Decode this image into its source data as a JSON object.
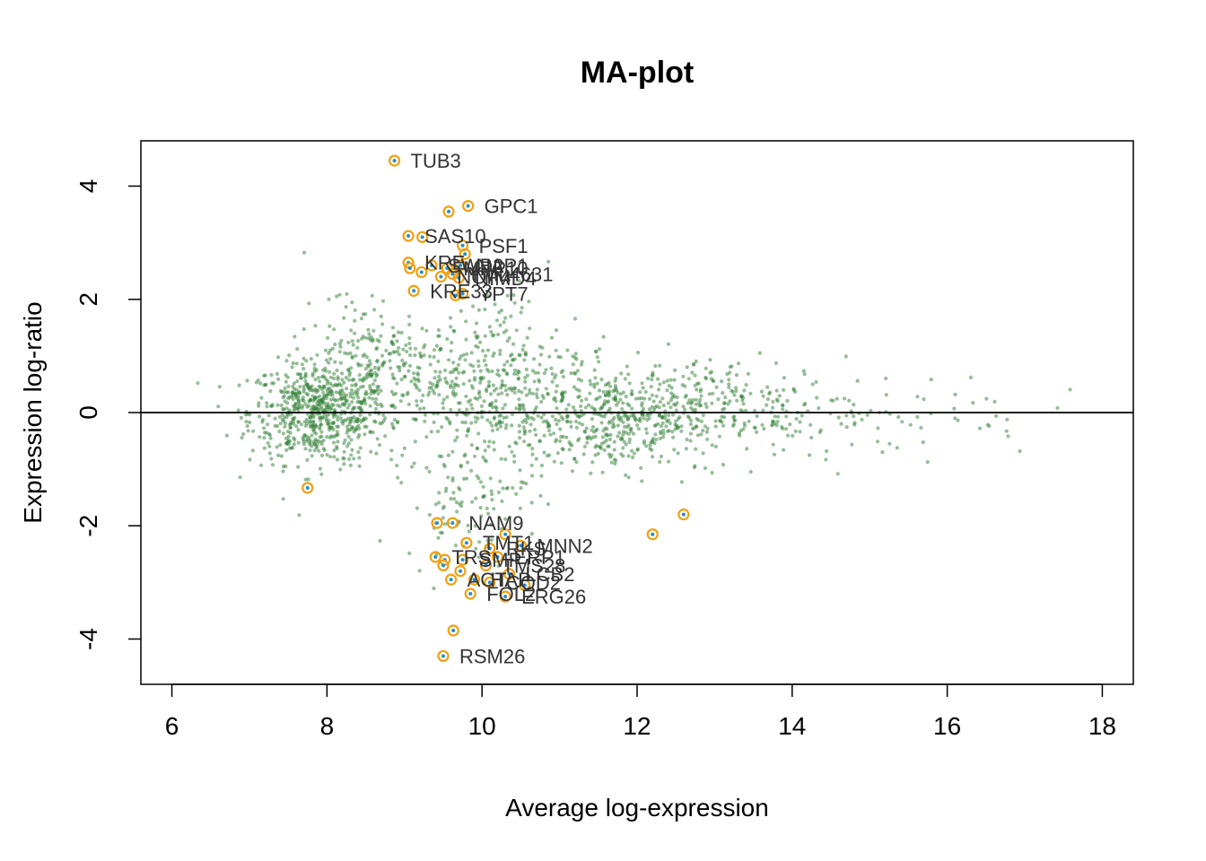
{
  "chart_data": {
    "type": "scatter",
    "title": "MA-plot",
    "xlabel": "Average log-expression",
    "ylabel": "Expression log-ratio",
    "xlim": [
      5.6,
      18.4
    ],
    "ylim": [
      -4.8,
      4.8
    ],
    "xticks": [
      6,
      8,
      10,
      12,
      14,
      16,
      18
    ],
    "yticks": [
      -4,
      -2,
      0,
      2,
      4
    ],
    "xtick_labels": [
      "6",
      "8",
      "10",
      "12",
      "14",
      "16",
      "18"
    ],
    "ytick_labels": [
      "-4",
      "-2",
      "0",
      "2",
      "4"
    ],
    "hline": 0,
    "grid": false,
    "colors": {
      "background_points": "#2e7d32",
      "highlight_ring": "#f0a010",
      "highlight_center": "#2b8cbe",
      "zero_line": "#000000",
      "label": "#333333"
    },
    "highlighted": [
      {
        "x": 8.87,
        "y": 4.45,
        "label": "TUB3"
      },
      {
        "x": 9.57,
        "y": 3.55,
        "label": ""
      },
      {
        "x": 9.82,
        "y": 3.65,
        "label": "GPC1"
      },
      {
        "x": 9.05,
        "y": 3.12,
        "label": "SAS10"
      },
      {
        "x": 9.23,
        "y": 3.1,
        "label": ""
      },
      {
        "x": 9.75,
        "y": 2.95,
        "label": "PSF1"
      },
      {
        "x": 9.78,
        "y": 2.8,
        "label": ""
      },
      {
        "x": 9.05,
        "y": 2.65,
        "label": "KRE"
      },
      {
        "x": 9.07,
        "y": 2.55,
        "label": ""
      },
      {
        "x": 9.35,
        "y": 2.6,
        "label": "SWB2"
      },
      {
        "x": 9.55,
        "y": 2.55,
        "label": "MPP10"
      },
      {
        "x": 9.72,
        "y": 2.6,
        "label": "NAP1"
      },
      {
        "x": 9.62,
        "y": 2.45,
        "label": "YML4631"
      },
      {
        "x": 9.22,
        "y": 2.48,
        "label": ""
      },
      {
        "x": 9.47,
        "y": 2.4,
        "label": "NOP4"
      },
      {
        "x": 9.7,
        "y": 2.38,
        "label": "NIMD4"
      },
      {
        "x": 9.12,
        "y": 2.15,
        "label": "KRE33"
      },
      {
        "x": 9.75,
        "y": 2.1,
        "label": "YPT7"
      },
      {
        "x": 9.66,
        "y": 2.07,
        "label": ""
      },
      {
        "x": 7.75,
        "y": -1.33,
        "label": ""
      },
      {
        "x": 9.42,
        "y": -1.95,
        "label": ""
      },
      {
        "x": 9.62,
        "y": -1.95,
        "label": "NAM9"
      },
      {
        "x": 10.3,
        "y": -2.15,
        "label": ""
      },
      {
        "x": 9.8,
        "y": -2.3,
        "label": "TMT1"
      },
      {
        "x": 10.5,
        "y": -2.35,
        "label": "MNN2"
      },
      {
        "x": 10.1,
        "y": -2.4,
        "label": "RKS"
      },
      {
        "x": 9.4,
        "y": -2.55,
        "label": "TRS"
      },
      {
        "x": 9.52,
        "y": -2.6,
        "label": ""
      },
      {
        "x": 9.5,
        "y": -2.7,
        "label": ""
      },
      {
        "x": 9.75,
        "y": -2.6,
        "label": "SMP"
      },
      {
        "x": 10.2,
        "y": -2.55,
        "label": "ERP1"
      },
      {
        "x": 9.72,
        "y": -2.8,
        "label": ""
      },
      {
        "x": 10.05,
        "y": -2.7,
        "label": "TMS28"
      },
      {
        "x": 10.35,
        "y": -2.85,
        "label": "LCB2"
      },
      {
        "x": 9.6,
        "y": -2.95,
        "label": "ACT"
      },
      {
        "x": 9.9,
        "y": -2.95,
        "label": "HAP"
      },
      {
        "x": 10.1,
        "y": -3.0,
        "label": "COD2"
      },
      {
        "x": 10.55,
        "y": -3.05,
        "label": ""
      },
      {
        "x": 9.85,
        "y": -3.2,
        "label": "FOL2"
      },
      {
        "x": 10.3,
        "y": -3.25,
        "label": "ERG26"
      },
      {
        "x": 12.6,
        "y": -1.8,
        "label": ""
      },
      {
        "x": 12.2,
        "y": -2.15,
        "label": ""
      },
      {
        "x": 9.63,
        "y": -3.85,
        "label": ""
      },
      {
        "x": 9.5,
        "y": -4.3,
        "label": "RSM26"
      }
    ]
  }
}
